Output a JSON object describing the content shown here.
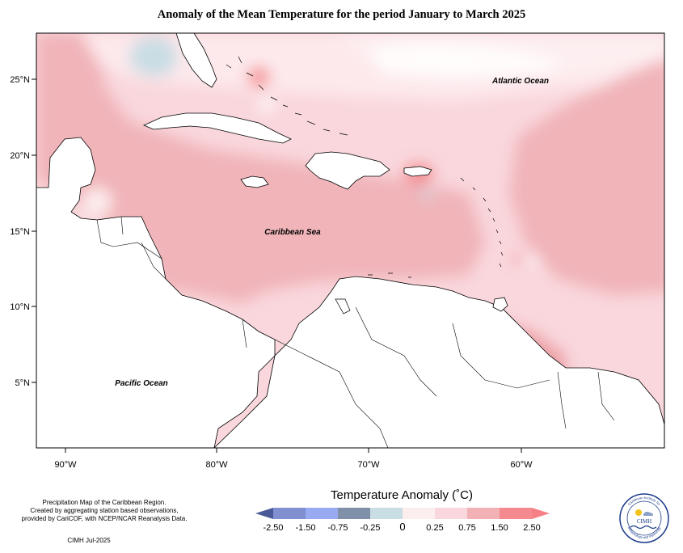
{
  "title": "Anomaly of the Mean Temperature for the period January to March 2025",
  "map": {
    "lon_ticks": [
      "90°W",
      "80°W",
      "70°W",
      "60°W"
    ],
    "lat_ticks": [
      "25°N",
      "20°N",
      "15°N",
      "10°N",
      "5°N"
    ],
    "labels": {
      "atlantic": "Atlantic Ocean",
      "caribbean": "Caribbean Sea",
      "pacific": "Pacific Ocean"
    }
  },
  "notes": {
    "line1": "Precipitation Map of the Caribbean Region.",
    "line2": "Created by aggregating station based observations,",
    "line3": "provided by CariCOF, with NCEP/NCAR Reanalysis Data.",
    "credit": "CIMH Jul-2025"
  },
  "legend": {
    "title": "Temperature Anomaly (˚C)",
    "ticks": [
      "-2.50",
      "-1.50",
      "-0.75",
      "-0.25",
      "0",
      "0.25",
      "0.75",
      "1.50",
      "2.50"
    ],
    "colors": [
      "#4a5a96",
      "#7f8fd0",
      "#9aaaf0",
      "#8090a8",
      "#c9dde4",
      "#fdeeee",
      "#f9d7dc",
      "#f1b1b5",
      "#f48a8f",
      "#f57f86"
    ]
  },
  "logo": {
    "text": "CIMH",
    "ring_top": "Caribbean Institute for",
    "ring_bottom": "Meteorology and Hydrology"
  }
}
